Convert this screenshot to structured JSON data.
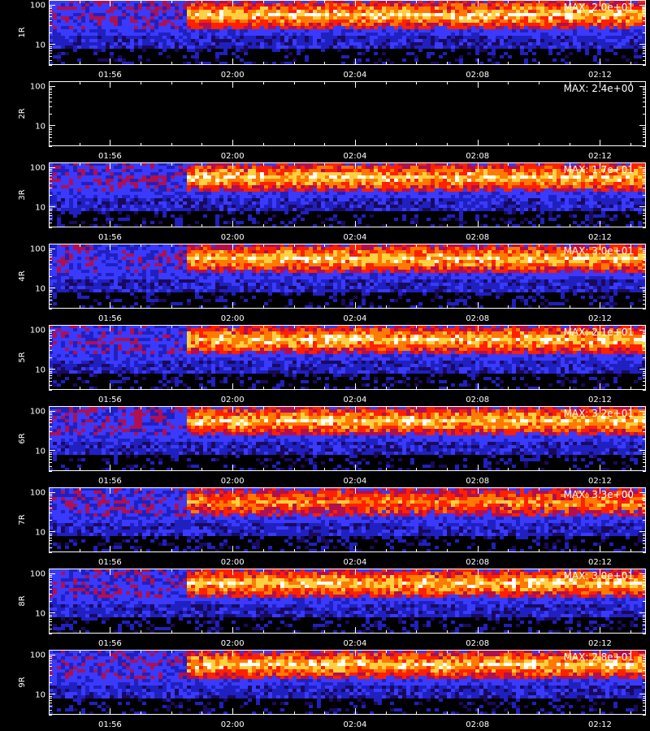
{
  "footer_text": "",
  "chart_data": [
    {
      "type": "heatmap",
      "ylabel": "1R",
      "max_label": "MAX: 2.0e+01",
      "max": 20.0,
      "has_data": true,
      "x_ticks": [
        "01:56",
        "02:00",
        "02:04",
        "02:08",
        "02:12"
      ],
      "y_ticks": [
        "100",
        "10"
      ],
      "y_scale": "log",
      "data_start": "01:58:30"
    },
    {
      "type": "heatmap",
      "ylabel": "2R",
      "max_label": "MAX: 2.4e+00",
      "max": 2.4,
      "has_data": false,
      "x_ticks": [
        "01:56",
        "02:00",
        "02:04",
        "02:08",
        "02:12"
      ],
      "y_ticks": [
        "100",
        "10"
      ],
      "y_scale": "log"
    },
    {
      "type": "heatmap",
      "ylabel": "3R",
      "max_label": "MAX: 1.7e+01",
      "max": 17.0,
      "has_data": true,
      "x_ticks": [
        "01:56",
        "02:00",
        "02:04",
        "02:08",
        "02:12"
      ],
      "y_ticks": [
        "100",
        "10"
      ],
      "y_scale": "log",
      "data_start": "01:58:30"
    },
    {
      "type": "heatmap",
      "ylabel": "4R",
      "max_label": "MAX: 3.0e+01",
      "max": 30.0,
      "has_data": true,
      "x_ticks": [
        "01:56",
        "02:00",
        "02:04",
        "02:08",
        "02:12"
      ],
      "y_ticks": [
        "100",
        "10"
      ],
      "y_scale": "log",
      "data_start": "01:58:30"
    },
    {
      "type": "heatmap",
      "ylabel": "5R",
      "max_label": "MAX: 2.1e+01",
      "max": 21.0,
      "has_data": true,
      "x_ticks": [
        "01:56",
        "02:00",
        "02:04",
        "02:08",
        "02:12"
      ],
      "y_ticks": [
        "100",
        "10"
      ],
      "y_scale": "log",
      "data_start": "01:58:30"
    },
    {
      "type": "heatmap",
      "ylabel": "6R",
      "max_label": "MAX: 3.2e+01",
      "max": 32.0,
      "has_data": true,
      "x_ticks": [
        "01:56",
        "02:00",
        "02:04",
        "02:08",
        "02:12"
      ],
      "y_ticks": [
        "100",
        "10"
      ],
      "y_scale": "log",
      "data_start": "01:58:30"
    },
    {
      "type": "heatmap",
      "ylabel": "7R",
      "max_label": "MAX: 3.3e+00",
      "max": 3.3,
      "has_data": true,
      "x_ticks": [
        "01:56",
        "02:00",
        "02:04",
        "02:08",
        "02:12"
      ],
      "y_ticks": [
        "100",
        "10"
      ],
      "y_scale": "log",
      "data_start": "01:58:30"
    },
    {
      "type": "heatmap",
      "ylabel": "8R",
      "max_label": "MAX: 3.0e+01",
      "max": 30.0,
      "has_data": true,
      "x_ticks": [
        "01:56",
        "02:00",
        "02:04",
        "02:08",
        "02:12"
      ],
      "y_ticks": [
        "100",
        "10"
      ],
      "y_scale": "log",
      "data_start": "01:58:30"
    },
    {
      "type": "heatmap",
      "ylabel": "9R",
      "max_label": "MAX: 2.8e+01",
      "max": 28.0,
      "has_data": true,
      "x_ticks": [
        "01:56",
        "02:00",
        "02:04",
        "02:08",
        "02:12"
      ],
      "y_ticks": [
        "100",
        "10"
      ],
      "y_scale": "log",
      "data_start": "01:58:30"
    }
  ],
  "colors": {
    "background": "#000000",
    "axis": "#ffffff",
    "palette": [
      "#000000",
      "#1a0a5a",
      "#2020c0",
      "#3a3aff",
      "#b01050",
      "#ff2000",
      "#ff7a00",
      "#ffd040",
      "#ffffff"
    ]
  }
}
